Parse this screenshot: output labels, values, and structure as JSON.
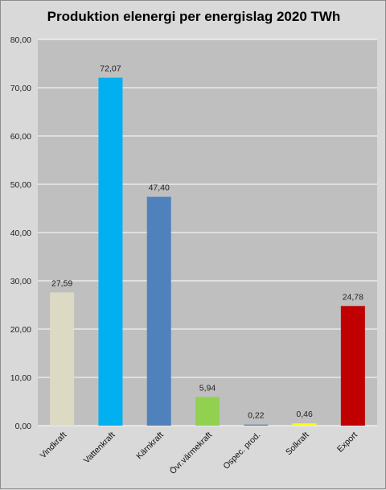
{
  "chart_data": {
    "type": "bar",
    "title": "Produktion elenergi per energislag 2020 TWh",
    "xlabel": "",
    "ylabel": "",
    "ylim": [
      0,
      80
    ],
    "y_ticks": [
      "0,00",
      "10,00",
      "20,00",
      "30,00",
      "40,00",
      "50,00",
      "60,00",
      "70,00",
      "80,00"
    ],
    "grid": true,
    "legend": "none",
    "categories": [
      "Vindkraft",
      "Vattenkraft",
      "Kärnkraft",
      "Övr.värmekraft",
      "Ospec. prod.",
      "Solkraft",
      "Export"
    ],
    "values": [
      27.59,
      72.07,
      47.4,
      5.94,
      0.22,
      0.46,
      24.78
    ],
    "value_labels": [
      "27,59",
      "72,07",
      "47,40",
      "5,94",
      "0,22",
      "0,46",
      "24,78"
    ],
    "colors": [
      "#dddac4",
      "#00b0f0",
      "#4f81bd",
      "#92d050",
      "#4f81bd",
      "#ffff00",
      "#c00000"
    ],
    "plot_background": "#bfbfbf",
    "gridline_color": "#ffffff"
  }
}
